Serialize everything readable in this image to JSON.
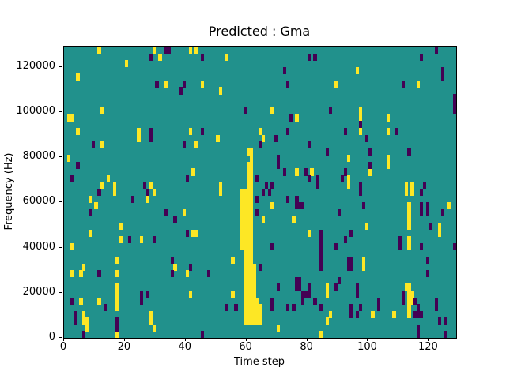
{
  "chart_data": {
    "type": "heatmap",
    "title": "Predicted : Gma",
    "xlabel": "Time step",
    "ylabel": "Frequency (Hz)",
    "x_ticks": [
      0,
      20,
      40,
      60,
      80,
      100,
      120
    ],
    "y_ticks": [
      0,
      20000,
      40000,
      60000,
      80000,
      100000,
      120000
    ],
    "x_range": [
      0,
      129
    ],
    "y_range": [
      0,
      129000
    ],
    "grid_cols": 129,
    "grid_rows": 43,
    "freq_bin_hz": 3000,
    "legend": "none",
    "grid": "off",
    "colors": {
      "cell_mid": "#21918c",
      "cell_high": "#fde725",
      "cell_low": "#440154",
      "figure_bg": "#ffffff",
      "axis": "#000000"
    },
    "high_cells": [
      [
        11,
        42
      ],
      [
        29,
        42
      ],
      [
        41,
        42
      ],
      [
        43,
        42
      ],
      [
        31,
        41
      ],
      [
        53,
        41
      ],
      [
        20,
        40
      ],
      [
        96,
        39
      ],
      [
        4,
        38
      ],
      [
        33,
        37
      ],
      [
        45,
        37
      ],
      [
        89,
        37
      ],
      [
        116,
        37
      ],
      [
        51,
        36
      ],
      [
        12,
        33
      ],
      [
        68,
        33
      ],
      [
        97,
        33
      ],
      [
        1,
        32
      ],
      [
        2,
        32
      ],
      [
        76,
        32
      ],
      [
        97,
        32
      ],
      [
        106,
        32
      ],
      [
        4,
        30
      ],
      [
        24,
        30
      ],
      [
        41,
        30
      ],
      [
        64,
        30
      ],
      [
        97,
        30
      ],
      [
        106,
        30
      ],
      [
        24,
        29
      ],
      [
        50,
        29
      ],
      [
        65,
        29
      ],
      [
        12,
        28
      ],
      [
        43,
        28
      ],
      [
        1,
        26
      ],
      [
        93,
        26
      ],
      [
        106,
        26
      ],
      [
        106,
        25
      ],
      [
        42,
        24
      ],
      [
        76,
        24
      ],
      [
        81,
        24
      ],
      [
        100,
        24
      ],
      [
        14,
        23
      ],
      [
        93,
        23
      ],
      [
        12,
        22
      ],
      [
        16,
        22
      ],
      [
        28,
        22
      ],
      [
        51,
        22
      ],
      [
        93,
        22
      ],
      [
        112,
        22
      ],
      [
        114,
        22
      ],
      [
        60,
        27
      ],
      [
        61,
        27
      ],
      [
        61,
        26
      ],
      [
        60,
        25
      ],
      [
        61,
        25
      ],
      [
        60,
        24
      ],
      [
        61,
        24
      ],
      [
        60,
        23
      ],
      [
        61,
        23
      ],
      [
        60,
        22
      ],
      [
        61,
        22
      ],
      [
        58,
        21
      ],
      [
        59,
        21
      ],
      [
        60,
        21
      ],
      [
        61,
        21
      ],
      [
        58,
        20
      ],
      [
        59,
        20
      ],
      [
        60,
        20
      ],
      [
        61,
        20
      ],
      [
        58,
        19
      ],
      [
        59,
        19
      ],
      [
        60,
        19
      ],
      [
        61,
        19
      ],
      [
        58,
        18
      ],
      [
        59,
        18
      ],
      [
        60,
        18
      ],
      [
        61,
        18
      ],
      [
        58,
        17
      ],
      [
        59,
        17
      ],
      [
        60,
        17
      ],
      [
        61,
        17
      ],
      [
        58,
        16
      ],
      [
        59,
        16
      ],
      [
        60,
        16
      ],
      [
        61,
        16
      ],
      [
        58,
        15
      ],
      [
        59,
        15
      ],
      [
        60,
        15
      ],
      [
        61,
        15
      ],
      [
        58,
        14
      ],
      [
        59,
        14
      ],
      [
        60,
        14
      ],
      [
        61,
        14
      ],
      [
        58,
        13
      ],
      [
        59,
        13
      ],
      [
        60,
        13
      ],
      [
        61,
        13
      ],
      [
        59,
        12
      ],
      [
        60,
        12
      ],
      [
        61,
        12
      ],
      [
        59,
        11
      ],
      [
        60,
        11
      ],
      [
        61,
        11
      ],
      [
        59,
        10
      ],
      [
        60,
        10
      ],
      [
        61,
        10
      ],
      [
        62,
        10
      ],
      [
        59,
        9
      ],
      [
        60,
        9
      ],
      [
        61,
        9
      ],
      [
        62,
        9
      ],
      [
        59,
        8
      ],
      [
        60,
        8
      ],
      [
        61,
        8
      ],
      [
        62,
        8
      ],
      [
        59,
        7
      ],
      [
        60,
        7
      ],
      [
        61,
        7
      ],
      [
        62,
        7
      ],
      [
        59,
        6
      ],
      [
        60,
        6
      ],
      [
        61,
        6
      ],
      [
        62,
        6
      ],
      [
        59,
        5
      ],
      [
        60,
        5
      ],
      [
        61,
        5
      ],
      [
        62,
        5
      ],
      [
        63,
        5
      ],
      [
        59,
        4
      ],
      [
        60,
        4
      ],
      [
        61,
        4
      ],
      [
        62,
        4
      ],
      [
        63,
        4
      ],
      [
        64,
        4
      ],
      [
        59,
        3
      ],
      [
        60,
        3
      ],
      [
        61,
        3
      ],
      [
        62,
        3
      ],
      [
        63,
        3
      ],
      [
        64,
        3
      ],
      [
        59,
        2
      ],
      [
        60,
        2
      ],
      [
        61,
        2
      ],
      [
        62,
        2
      ],
      [
        63,
        2
      ],
      [
        64,
        2
      ],
      [
        16,
        21
      ],
      [
        29,
        21
      ],
      [
        51,
        21
      ],
      [
        112,
        21
      ],
      [
        114,
        21
      ],
      [
        8,
        20
      ],
      [
        27,
        20
      ],
      [
        10,
        19
      ],
      [
        68,
        19
      ],
      [
        113,
        19
      ],
      [
        126,
        19
      ],
      [
        39,
        18
      ],
      [
        113,
        18
      ],
      [
        65,
        17
      ],
      [
        75,
        17
      ],
      [
        113,
        17
      ],
      [
        18,
        16
      ],
      [
        99,
        16
      ],
      [
        113,
        16
      ],
      [
        123,
        16
      ],
      [
        8,
        15
      ],
      [
        42,
        15
      ],
      [
        43,
        15
      ],
      [
        80,
        15
      ],
      [
        123,
        15
      ],
      [
        18,
        14
      ],
      [
        25,
        14
      ],
      [
        113,
        14
      ],
      [
        2,
        13
      ],
      [
        113,
        13
      ],
      [
        17,
        11
      ],
      [
        55,
        11
      ],
      [
        98,
        11
      ],
      [
        6,
        10
      ],
      [
        36,
        10
      ],
      [
        98,
        10
      ],
      [
        2,
        9
      ],
      [
        5,
        9
      ],
      [
        17,
        9
      ],
      [
        40,
        9
      ],
      [
        17,
        7
      ],
      [
        86,
        7
      ],
      [
        112,
        7
      ],
      [
        113,
        7
      ],
      [
        17,
        6
      ],
      [
        41,
        6
      ],
      [
        55,
        6
      ],
      [
        86,
        6
      ],
      [
        113,
        6
      ],
      [
        114,
        6
      ],
      [
        5,
        5
      ],
      [
        11,
        5
      ],
      [
        17,
        5
      ],
      [
        113,
        5
      ],
      [
        114,
        5
      ],
      [
        17,
        4
      ],
      [
        113,
        4
      ],
      [
        6,
        3
      ],
      [
        28,
        3
      ],
      [
        87,
        3
      ],
      [
        101,
        3
      ],
      [
        108,
        3
      ],
      [
        113,
        3
      ],
      [
        6,
        2
      ],
      [
        7,
        2
      ],
      [
        28,
        2
      ],
      [
        86,
        2
      ],
      [
        7,
        1
      ],
      [
        29,
        1
      ],
      [
        70,
        1
      ],
      [
        17,
        0
      ],
      [
        84,
        0
      ]
    ],
    "low_cells": [
      [
        33,
        42
      ],
      [
        34,
        42
      ],
      [
        122,
        42
      ],
      [
        28,
        41
      ],
      [
        45,
        41
      ],
      [
        80,
        41
      ],
      [
        82,
        41
      ],
      [
        117,
        41
      ],
      [
        72,
        39
      ],
      [
        124,
        39
      ],
      [
        124,
        38
      ],
      [
        30,
        37
      ],
      [
        39,
        37
      ],
      [
        73,
        37
      ],
      [
        111,
        37
      ],
      [
        38,
        36
      ],
      [
        128,
        35
      ],
      [
        128,
        34
      ],
      [
        128,
        33
      ],
      [
        87,
        33
      ],
      [
        59,
        33
      ],
      [
        74,
        32
      ],
      [
        97,
        31
      ],
      [
        28,
        30
      ],
      [
        45,
        30
      ],
      [
        73,
        30
      ],
      [
        92,
        30
      ],
      [
        109,
        30
      ],
      [
        28,
        29
      ],
      [
        69,
        29
      ],
      [
        99,
        29
      ],
      [
        9,
        28
      ],
      [
        39,
        28
      ],
      [
        64,
        28
      ],
      [
        80,
        28
      ],
      [
        86,
        27
      ],
      [
        100,
        27
      ],
      [
        113,
        27
      ],
      [
        70,
        26
      ],
      [
        70,
        25
      ],
      [
        4,
        25
      ],
      [
        100,
        25
      ],
      [
        72,
        24
      ],
      [
        79,
        24
      ],
      [
        92,
        24
      ],
      [
        2,
        23
      ],
      [
        40,
        23
      ],
      [
        63,
        23
      ],
      [
        80,
        23
      ],
      [
        83,
        23
      ],
      [
        91,
        23
      ],
      [
        26,
        22
      ],
      [
        66,
        22
      ],
      [
        68,
        22
      ],
      [
        83,
        22
      ],
      [
        97,
        22
      ],
      [
        118,
        22
      ],
      [
        11,
        21
      ],
      [
        27,
        21
      ],
      [
        65,
        21
      ],
      [
        67,
        21
      ],
      [
        97,
        21
      ],
      [
        117,
        21
      ],
      [
        22,
        20
      ],
      [
        63,
        20
      ],
      [
        73,
        20
      ],
      [
        76,
        20
      ],
      [
        76,
        19
      ],
      [
        77,
        19
      ],
      [
        78,
        19
      ],
      [
        98,
        19
      ],
      [
        117,
        19
      ],
      [
        119,
        19
      ],
      [
        8,
        18
      ],
      [
        33,
        18
      ],
      [
        63,
        18
      ],
      [
        90,
        18
      ],
      [
        117,
        18
      ],
      [
        119,
        18
      ],
      [
        124,
        18
      ],
      [
        36,
        17
      ],
      [
        120,
        16
      ],
      [
        40,
        15
      ],
      [
        84,
        15
      ],
      [
        94,
        15
      ],
      [
        21,
        14
      ],
      [
        29,
        14
      ],
      [
        84,
        14
      ],
      [
        92,
        14
      ],
      [
        110,
        14
      ],
      [
        68,
        13
      ],
      [
        84,
        13
      ],
      [
        89,
        13
      ],
      [
        110,
        13
      ],
      [
        117,
        13
      ],
      [
        128,
        13
      ],
      [
        84,
        12
      ],
      [
        35,
        11
      ],
      [
        84,
        11
      ],
      [
        93,
        11
      ],
      [
        94,
        11
      ],
      [
        119,
        11
      ],
      [
        41,
        10
      ],
      [
        64,
        10
      ],
      [
        84,
        10
      ],
      [
        93,
        10
      ],
      [
        94,
        10
      ],
      [
        11,
        9
      ],
      [
        35,
        9
      ],
      [
        47,
        9
      ],
      [
        119,
        9
      ],
      [
        76,
        8
      ],
      [
        77,
        8
      ],
      [
        90,
        8
      ],
      [
        70,
        7
      ],
      [
        76,
        7
      ],
      [
        77,
        7
      ],
      [
        80,
        7
      ],
      [
        89,
        7
      ],
      [
        96,
        7
      ],
      [
        25,
        6
      ],
      [
        27,
        6
      ],
      [
        78,
        6
      ],
      [
        79,
        6
      ],
      [
        80,
        6
      ],
      [
        96,
        6
      ],
      [
        111,
        6
      ],
      [
        2,
        5
      ],
      [
        25,
        5
      ],
      [
        68,
        5
      ],
      [
        78,
        5
      ],
      [
        82,
        5
      ],
      [
        103,
        5
      ],
      [
        111,
        5
      ],
      [
        115,
        5
      ],
      [
        122,
        5
      ],
      [
        13,
        4
      ],
      [
        53,
        4
      ],
      [
        56,
        4
      ],
      [
        68,
        4
      ],
      [
        73,
        4
      ],
      [
        75,
        4
      ],
      [
        84,
        4
      ],
      [
        94,
        4
      ],
      [
        97,
        4
      ],
      [
        103,
        4
      ],
      [
        116,
        4
      ],
      [
        122,
        4
      ],
      [
        3,
        3
      ],
      [
        94,
        3
      ],
      [
        96,
        3
      ],
      [
        115,
        3
      ],
      [
        116,
        3
      ],
      [
        117,
        3
      ],
      [
        3,
        2
      ],
      [
        17,
        2
      ],
      [
        123,
        2
      ],
      [
        125,
        2
      ],
      [
        17,
        1
      ],
      [
        116,
        1
      ],
      [
        6,
        0
      ],
      [
        45,
        0
      ],
      [
        116,
        0
      ],
      [
        125,
        0
      ]
    ]
  }
}
